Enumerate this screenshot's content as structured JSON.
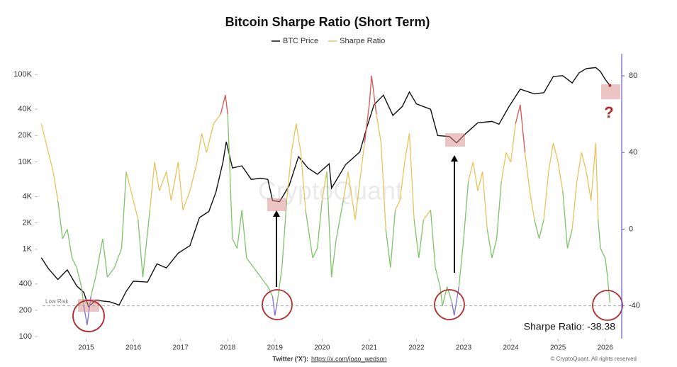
{
  "chart_data": {
    "type": "line",
    "title": "Bitcoin Sharpe Ratio (Short Term)",
    "xlim": [
      2014.0,
      2026.35
    ],
    "xticks": [
      2015,
      2016,
      2017,
      2018,
      2019,
      2020,
      2021,
      2022,
      2023,
      2024,
      2025,
      2026
    ],
    "ylim": [
      100,
      160000
    ],
    "log_scale": true,
    "yticks": [
      100,
      200,
      400,
      {
        "value": 1000,
        "label": "1K"
      },
      {
        "value": 2000,
        "label": "2K"
      },
      {
        "value": 4000,
        "label": "4K"
      },
      {
        "value": 10000,
        "label": "10K"
      },
      {
        "value": 20000,
        "label": "20K"
      },
      {
        "value": 40000,
        "label": "40K"
      },
      {
        "value": 100000,
        "label": "100K"
      }
    ],
    "y2lim": [
      -56,
      90
    ],
    "y2ticks": [
      -40,
      0,
      40,
      80
    ],
    "y2_axis_color": "#6a5acd",
    "series": [
      {
        "name": "BTC Price",
        "color": "#111111",
        "x": [
          2014.05,
          2014.2,
          2014.4,
          2014.6,
          2014.8,
          2014.95,
          2015.05,
          2015.2,
          2015.5,
          2015.7,
          2015.85,
          2016.0,
          2016.3,
          2016.5,
          2016.7,
          2016.95,
          2017.2,
          2017.4,
          2017.6,
          2017.75,
          2017.9,
          2017.97,
          2018.1,
          2018.3,
          2018.5,
          2018.7,
          2018.85,
          2018.95,
          2019.1,
          2019.3,
          2019.5,
          2019.7,
          2019.9,
          2020.15,
          2020.2,
          2020.5,
          2020.8,
          2020.95,
          2021.1,
          2021.3,
          2021.5,
          2021.7,
          2021.85,
          2022.0,
          2022.3,
          2022.45,
          2022.7,
          2022.85,
          2023.0,
          2023.3,
          2023.6,
          2023.75,
          2023.95,
          2024.2,
          2024.5,
          2024.7,
          2024.9,
          2025.1,
          2025.3,
          2025.45,
          2025.6,
          2025.8,
          2025.9,
          2026.0,
          2026.1
        ],
        "values": [
          800,
          600,
          450,
          580,
          380,
          320,
          220,
          260,
          250,
          230,
          330,
          430,
          420,
          680,
          610,
          900,
          1100,
          2300,
          2700,
          4500,
          10000,
          17000,
          8500,
          9000,
          6300,
          6500,
          6300,
          3600,
          3500,
          5300,
          11500,
          8500,
          7200,
          9500,
          5000,
          9300,
          13000,
          25000,
          45000,
          58000,
          34000,
          43000,
          63000,
          46000,
          40000,
          20000,
          19500,
          16500,
          20000,
          28000,
          29000,
          27000,
          42000,
          68000,
          60000,
          62000,
          95000,
          97000,
          80000,
          105000,
          117000,
          120000,
          108000,
          88000,
          75000
        ]
      },
      {
        "name": "Sharpe Ratio",
        "color": "#e8c35c",
        "axis": "y2",
        "x": [
          2014.05,
          2014.15,
          2014.3,
          2014.4,
          2014.5,
          2014.6,
          2014.7,
          2014.8,
          2014.9,
          2014.95,
          2015.02,
          2015.1,
          2015.2,
          2015.35,
          2015.45,
          2015.6,
          2015.75,
          2015.85,
          2015.95,
          2016.1,
          2016.2,
          2016.35,
          2016.45,
          2016.55,
          2016.7,
          2016.8,
          2016.95,
          2017.05,
          2017.2,
          2017.35,
          2017.45,
          2017.55,
          2017.7,
          2017.85,
          2017.95,
          2018.0,
          2018.1,
          2018.2,
          2018.3,
          2018.4,
          2018.55,
          2018.7,
          2018.85,
          2018.95,
          2019.0,
          2019.05,
          2019.15,
          2019.25,
          2019.35,
          2019.45,
          2019.55,
          2019.65,
          2019.8,
          2019.9,
          2020.0,
          2020.1,
          2020.2,
          2020.3,
          2020.45,
          2020.55,
          2020.7,
          2020.8,
          2020.9,
          2021.0,
          2021.05,
          2021.15,
          2021.25,
          2021.35,
          2021.45,
          2021.55,
          2021.65,
          2021.75,
          2021.85,
          2021.95,
          2022.05,
          2022.15,
          2022.3,
          2022.4,
          2022.5,
          2022.55,
          2022.65,
          2022.75,
          2022.8,
          2022.9,
          2023.0,
          2023.1,
          2023.2,
          2023.3,
          2023.4,
          2023.5,
          2023.6,
          2023.7,
          2023.8,
          2023.9,
          2024.0,
          2024.1,
          2024.2,
          2024.3,
          2024.4,
          2024.5,
          2024.6,
          2024.7,
          2024.8,
          2024.9,
          2025.0,
          2025.1,
          2025.2,
          2025.3,
          2025.4,
          2025.5,
          2025.6,
          2025.7,
          2025.8,
          2025.85,
          2025.9,
          2026.0,
          2026.05,
          2026.1
        ],
        "values": [
          55,
          45,
          30,
          15,
          -5,
          0,
          -15,
          -20,
          -30,
          -40,
          -50,
          -35,
          -25,
          -5,
          -25,
          -20,
          -10,
          30,
          20,
          5,
          -25,
          10,
          35,
          20,
          30,
          15,
          35,
          10,
          20,
          35,
          50,
          40,
          55,
          60,
          70,
          60,
          -5,
          -10,
          10,
          -15,
          -20,
          -25,
          -30,
          -35,
          -45,
          -38,
          -20,
          15,
          40,
          55,
          40,
          10,
          -15,
          -10,
          15,
          30,
          -25,
          -5,
          15,
          30,
          5,
          25,
          45,
          65,
          80,
          60,
          45,
          0,
          -20,
          10,
          15,
          35,
          50,
          5,
          -15,
          5,
          10,
          -20,
          -30,
          -40,
          -30,
          -38,
          -45,
          -30,
          -5,
          25,
          35,
          20,
          30,
          0,
          -15,
          -5,
          25,
          40,
          35,
          55,
          65,
          40,
          20,
          5,
          -5,
          5,
          30,
          45,
          35,
          20,
          -10,
          0,
          25,
          40,
          30,
          15,
          45,
          5,
          -10,
          -15,
          -25,
          -38.38
        ]
      }
    ],
    "color_scale": [
      {
        "below": -40,
        "color": "#7b6fd6"
      },
      {
        "below": 0,
        "color": "#7cc46a"
      },
      {
        "below": 62,
        "color": "#e8c35c"
      },
      {
        "color": "#d9534f"
      }
    ],
    "low_risk_level": -40,
    "low_risk_label": "Low Risk",
    "annotations": {
      "value_text": "Sharpe Ratio: -38.38",
      "question": "?",
      "watermark": "CryptoQuant",
      "footer_label": "Twitter ('X'):",
      "footer_link": "https://x.com/joao_wedson",
      "copyright": "© CryptoQuant. All rights reserved"
    }
  }
}
